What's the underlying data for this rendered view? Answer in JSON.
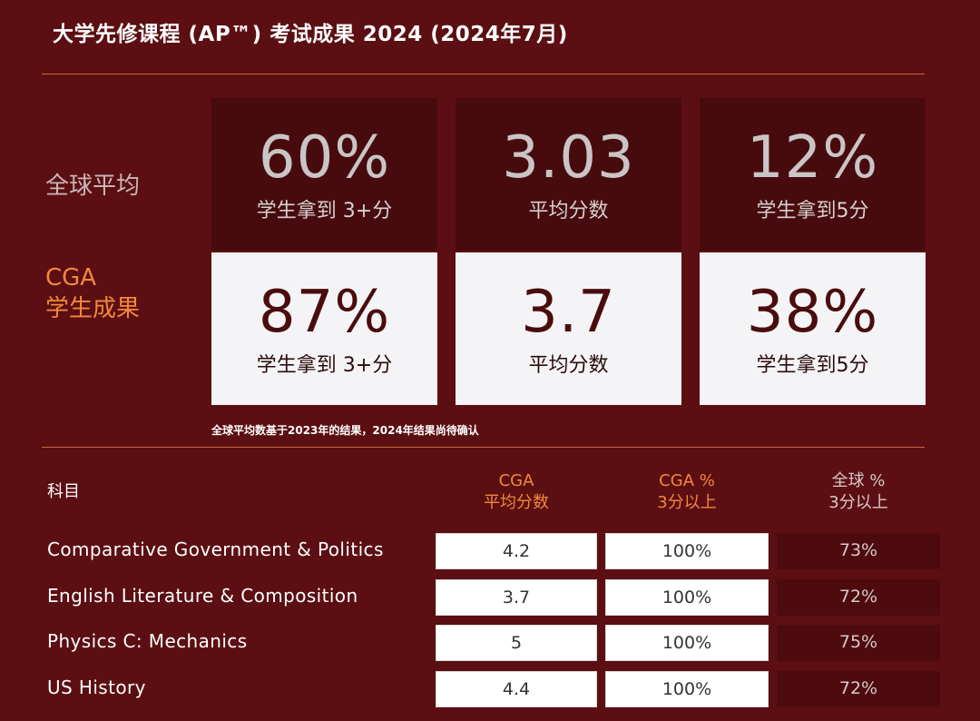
{
  "title": "大学先修课程 (AP™) 考试成果 2024 (2024年7月)",
  "row_labels": {
    "global": "全球平均",
    "cga_line1": "CGA",
    "cga_line2": "学生成果"
  },
  "global_stats": [
    {
      "value": "60%",
      "label": "学生拿到 3+分"
    },
    {
      "value": "3.03",
      "label": "平均分数"
    },
    {
      "value": "12%",
      "label": "学生拿到5分"
    }
  ],
  "cga_stats": [
    {
      "value": "87%",
      "label": "学生拿到 3+分"
    },
    {
      "value": "3.7",
      "label": "平均分数"
    },
    {
      "value": "38%",
      "label": "学生拿到5分"
    }
  ],
  "footnote": "全球平均数基于2023年的结果，2024年结果尚待确认",
  "table": {
    "headers": {
      "subject": "科目",
      "cga_avg_1": "CGA",
      "cga_avg_2": "平均分数",
      "cga_pct_1": "CGA %",
      "cga_pct_2": "3分以上",
      "global_pct_1": "全球 %",
      "global_pct_2": "3分以上"
    },
    "rows": [
      {
        "subject": "Comparative Government & Politics",
        "cga_avg": "4.2",
        "cga_pct": "100%",
        "global_pct": "73%"
      },
      {
        "subject": "English Literature & Composition",
        "cga_avg": "3.7",
        "cga_pct": "100%",
        "global_pct": "72%"
      },
      {
        "subject": "Physics C: Mechanics",
        "cga_avg": "5",
        "cga_pct": "100%",
        "global_pct": "75%"
      },
      {
        "subject": "US History",
        "cga_avg": "4.4",
        "cga_pct": "100%",
        "global_pct": "72%"
      }
    ]
  },
  "colors": {
    "background": "#5c0f12",
    "accent_orange": "#f0883c",
    "dark_card": "#470b0e",
    "light_card": "#f4f4f6"
  }
}
